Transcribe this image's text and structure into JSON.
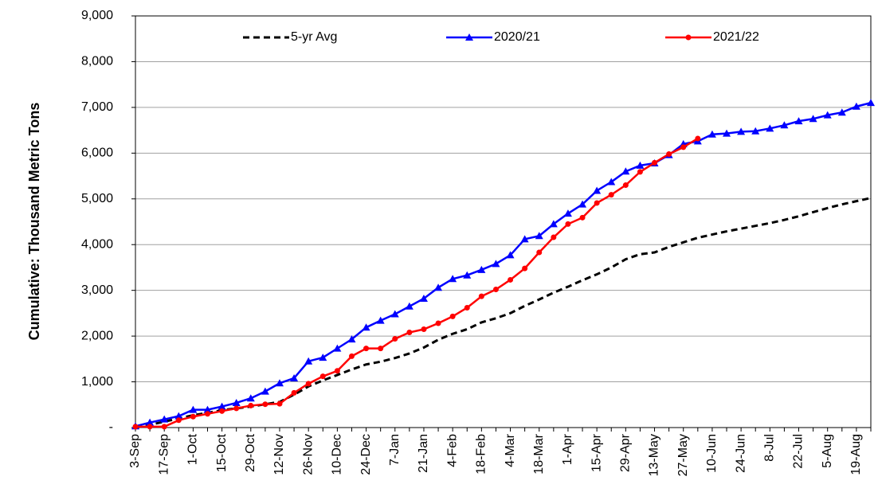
{
  "chart_data": {
    "type": "line",
    "y_label": "Cumulative:  Thousand Metric Tons",
    "categories": [
      "3-Sep",
      null,
      "17-Sep",
      null,
      "1-Oct",
      null,
      "15-Oct",
      null,
      "29-Oct",
      null,
      "12-Nov",
      null,
      "26-Nov",
      null,
      "10-Dec",
      null,
      "24-Dec",
      null,
      "7-Jan",
      null,
      "21-Jan",
      null,
      "4-Feb",
      null,
      "18-Feb",
      null,
      "4-Mar",
      null,
      "18-Mar",
      null,
      "1-Apr",
      null,
      "15-Apr",
      null,
      "29-Apr",
      null,
      "13-May",
      null,
      "27-May",
      null,
      "10-Jun",
      null,
      "24-Jun",
      null,
      "8-Jul",
      null,
      "22-Jul",
      null,
      "5-Aug",
      null,
      "19-Aug",
      null
    ],
    "series": [
      {
        "name": "5-yr Avg",
        "color": "#000000",
        "line_style": "dashed",
        "marker": "none",
        "values": [
          0,
          60,
          130,
          200,
          270,
          320,
          380,
          420,
          460,
          510,
          560,
          720,
          900,
          1030,
          1150,
          1270,
          1380,
          1440,
          1520,
          1620,
          1750,
          1920,
          2050,
          2150,
          2300,
          2390,
          2500,
          2660,
          2800,
          2950,
          3080,
          3220,
          3350,
          3500,
          3680,
          3790,
          3830,
          3950,
          4050,
          4150,
          4220,
          4290,
          4350,
          4410,
          4470,
          4540,
          4620,
          4710,
          4800,
          4880,
          4950,
          5020
        ]
      },
      {
        "name": "2020/21",
        "color": "#0000ff",
        "line_style": "solid",
        "marker": "triangle",
        "values": [
          30,
          110,
          180,
          250,
          390,
          390,
          460,
          540,
          640,
          790,
          970,
          1080,
          1450,
          1530,
          1730,
          1930,
          2190,
          2340,
          2480,
          2650,
          2820,
          3060,
          3250,
          3330,
          3450,
          3580,
          3770,
          4120,
          4190,
          4450,
          4680,
          4880,
          5180,
          5370,
          5600,
          5730,
          5780,
          5960,
          6200,
          6260,
          6410,
          6430,
          6470,
          6480,
          6540,
          6610,
          6700,
          6750,
          6830,
          6890,
          7020,
          7100
        ]
      },
      {
        "name": "2021/22",
        "color": "#ff0000",
        "line_style": "solid",
        "marker": "circle",
        "values": [
          20,
          20,
          20,
          160,
          240,
          300,
          360,
          420,
          480,
          510,
          520,
          760,
          960,
          1120,
          1240,
          1560,
          1730,
          1730,
          1940,
          2080,
          2150,
          2280,
          2430,
          2620,
          2870,
          3020,
          3230,
          3480,
          3830,
          4160,
          4450,
          4590,
          4910,
          5090,
          5300,
          5590,
          5790,
          5980,
          6130,
          6320,
          null,
          null,
          null,
          null,
          null,
          null,
          null,
          null,
          null,
          null,
          null,
          null
        ]
      }
    ],
    "ylim": [
      0,
      9000
    ],
    "yticks": [
      {
        "value": 0,
        "label": "-"
      },
      {
        "value": 1000,
        "label": "1,000"
      },
      {
        "value": 2000,
        "label": "2,000"
      },
      {
        "value": 3000,
        "label": "3,000"
      },
      {
        "value": 4000,
        "label": "4,000"
      },
      {
        "value": 5000,
        "label": "5,000"
      },
      {
        "value": 6000,
        "label": "6,000"
      },
      {
        "value": 7000,
        "label": "7,000"
      },
      {
        "value": 8000,
        "label": "8,000"
      },
      {
        "value": 9000,
        "label": "9,000"
      }
    ],
    "grid": true,
    "legend": "top"
  }
}
